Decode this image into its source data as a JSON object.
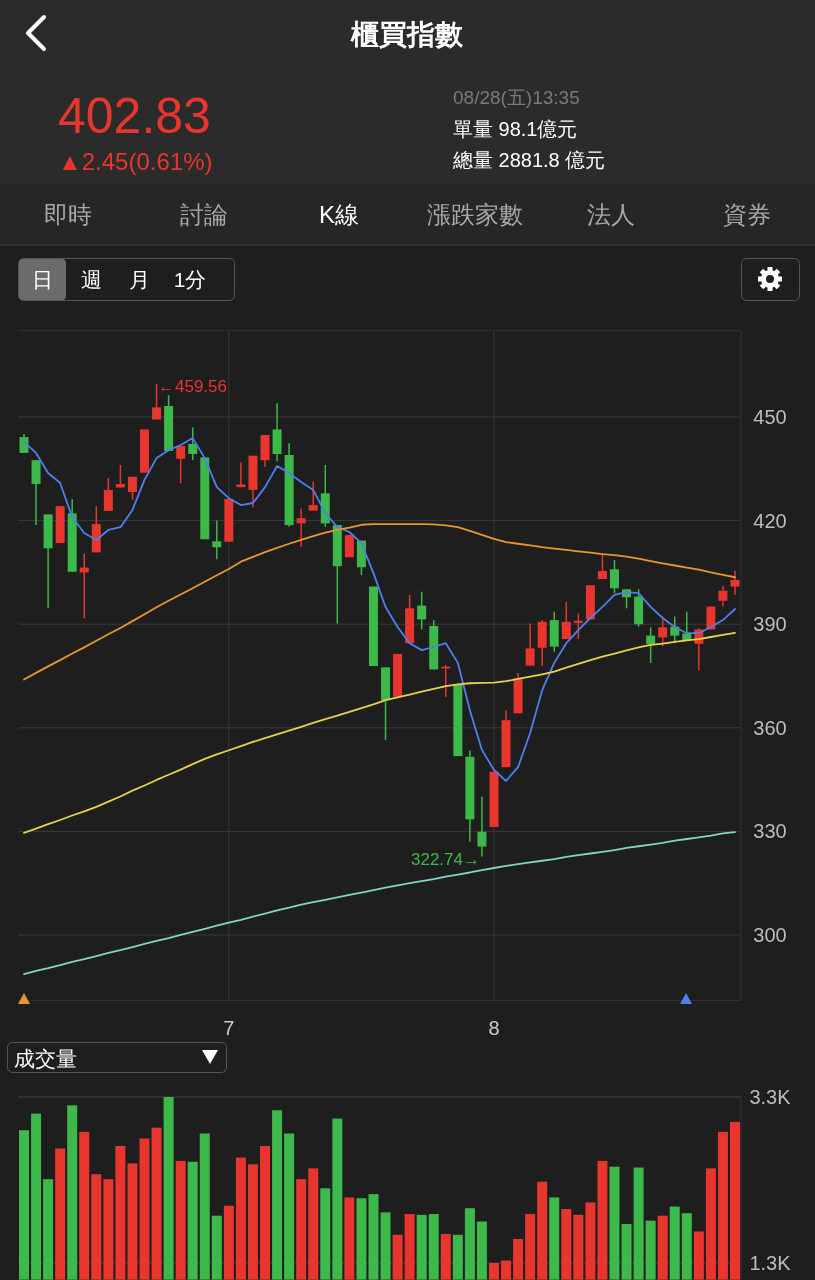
{
  "chart_data": [
    {
      "type": "candlestick",
      "title": "櫃買指數",
      "annotations": [
        "402.83",
        "▲2.45(0.61%)",
        "08/28(五)13:35",
        "單量 98.1億元",
        "總量 2881.8 億元",
        "即時",
        "討論",
        "K線",
        "漲跌家數",
        "法人",
        "資券",
        "日",
        "週",
        "月",
        "1分",
        "←459.56",
        "322.74→"
      ],
      "categories": [
        null,
        null,
        null,
        null,
        null,
        null,
        null,
        null,
        null,
        null,
        null,
        null,
        null,
        null,
        null,
        null,
        null,
        "7",
        null,
        null,
        null,
        null,
        null,
        null,
        null,
        null,
        null,
        null,
        null,
        null,
        null,
        null,
        null,
        null,
        null,
        null,
        null,
        null,
        null,
        "8",
        null,
        null,
        null,
        null,
        null,
        null,
        null,
        null,
        null,
        null,
        null,
        null,
        null,
        null,
        null,
        null,
        null,
        null,
        null,
        null
      ],
      "ohlc": [
        [
          444.2,
          445.1,
          439.6,
          439.6
        ],
        [
          437.5,
          437.5,
          418.7,
          430.6
        ],
        [
          421.8,
          421.8,
          394.7,
          412.0
        ],
        [
          413.5,
          424.2,
          413.5,
          424.2
        ],
        [
          422.1,
          426.2,
          405.2,
          405.2
        ],
        [
          405.0,
          410.5,
          391.7,
          406.4
        ],
        [
          410.8,
          424.2,
          410.8,
          419.0
        ],
        [
          422.8,
          432.4,
          422.8,
          428.9
        ],
        [
          429.6,
          436.1,
          429.6,
          430.6
        ],
        [
          428.3,
          432.7,
          426.0,
          432.7
        ],
        [
          433.9,
          446.4,
          433.9,
          446.4
        ],
        [
          449.3,
          459.56,
          449.3,
          452.8
        ],
        [
          453.2,
          456.4,
          440.2,
          440.2
        ],
        [
          437.9,
          441.6,
          430.8,
          441.6
        ],
        [
          442.2,
          447.0,
          437.5,
          439.3
        ],
        [
          438.3,
          438.3,
          414.6,
          414.6
        ],
        [
          414.0,
          420.0,
          408.8,
          412.3
        ],
        [
          413.9,
          426.3,
          413.9,
          426.3
        ],
        [
          429.7,
          436.8,
          429.7,
          430.5
        ],
        [
          428.9,
          438.8,
          423.9,
          438.8
        ],
        [
          437.5,
          444.8,
          435.5,
          444.8
        ],
        [
          446.4,
          454.0,
          437.1,
          439.3
        ],
        [
          439.0,
          442.4,
          418.2,
          418.7
        ],
        [
          419.2,
          423.5,
          412.4,
          420.7
        ],
        [
          422.9,
          431.3,
          422.9,
          424.5
        ],
        [
          427.9,
          436.1,
          418.2,
          419.2
        ],
        [
          418.7,
          418.7,
          390.2,
          406.8
        ],
        [
          409.4,
          415.8,
          409.4,
          415.8
        ],
        [
          414.2,
          414.2,
          404.2,
          406.5
        ],
        [
          400.9,
          400.9,
          377.9,
          377.9
        ],
        [
          377.5,
          377.5,
          356.5,
          368.0
        ],
        [
          369.0,
          381.4,
          369.0,
          381.4
        ],
        [
          384.5,
          398.5,
          384.5,
          394.6
        ],
        [
          395.4,
          399.4,
          388.5,
          391.4
        ],
        [
          389.5,
          391.2,
          376.9,
          376.9
        ],
        [
          377.2,
          378.2,
          369.0,
          377.7
        ],
        [
          372.7,
          372.7,
          351.8,
          351.8
        ],
        [
          351.6,
          353.4,
          327.0,
          333.5
        ],
        [
          329.9,
          340.0,
          322.74,
          325.6
        ],
        [
          331.3,
          347.3,
          331.3,
          347.3
        ],
        [
          348.6,
          365.1,
          348.6,
          362.2
        ],
        [
          364.2,
          375.8,
          364.2,
          374.3
        ],
        [
          378.0,
          390.2,
          378.0,
          383.0
        ],
        [
          383.2,
          391.2,
          377.9,
          390.7
        ],
        [
          391.2,
          393.6,
          382.0,
          383.5
        ],
        [
          385.7,
          396.5,
          385.7,
          390.7
        ],
        [
          390.4,
          393.1,
          385.7,
          391.0
        ],
        [
          391.4,
          401.3,
          391.4,
          401.3
        ],
        [
          403.1,
          410.5,
          403.1,
          405.4
        ],
        [
          405.9,
          408.6,
          399.0,
          400.4
        ],
        [
          400.1,
          400.1,
          394.6,
          397.8
        ],
        [
          398.0,
          400.1,
          389.3,
          390.0
        ],
        [
          386.7,
          389.1,
          378.8,
          384.3
        ],
        [
          386.2,
          392.2,
          383.7,
          389.1
        ],
        [
          389.3,
          392.2,
          384.5,
          386.7
        ],
        [
          387.3,
          393.6,
          385.4,
          385.4
        ],
        [
          384.3,
          388.8,
          376.7,
          388.5
        ],
        [
          388.5,
          395.1,
          388.5,
          395.1
        ],
        [
          396.8,
          401.1,
          395.1,
          399.7
        ],
        [
          400.9,
          405.5,
          398.5,
          402.83
        ]
      ],
      "colors": [
        "#3db84a",
        "#3db84a",
        "#3db84a",
        "#e8352e",
        "#3db84a",
        "#e8352e",
        "#e8352e",
        "#e8352e",
        "#e8352e",
        "#e8352e",
        "#e8352e",
        "#e8352e",
        "#3db84a",
        "#e8352e",
        "#3db84a",
        "#3db84a",
        "#3db84a",
        "#e8352e",
        "#e8352e",
        "#e8352e",
        "#e8352e",
        "#3db84a",
        "#3db84a",
        "#e8352e",
        "#e8352e",
        "#3db84a",
        "#3db84a",
        "#e8352e",
        "#3db84a",
        "#3db84a",
        "#3db84a",
        "#e8352e",
        "#e8352e",
        "#3db84a",
        "#3db84a",
        "#e8352e",
        "#3db84a",
        "#3db84a",
        "#3db84a",
        "#e8352e",
        "#e8352e",
        "#e8352e",
        "#e8352e",
        "#e8352e",
        "#3db84a",
        "#e8352e",
        "#e8352e",
        "#e8352e",
        "#e8352e",
        "#3db84a",
        "#3db84a",
        "#3db84a",
        "#3db84a",
        "#e8352e",
        "#3db84a",
        "#3db84a",
        "#e8352e",
        "#e8352e",
        "#e8352e",
        "#e8352e"
      ],
      "series": [
        {
          "type": "line",
          "color": "#4f7ff0",
          "values": [
            442.8,
            439.6,
            433.8,
            430.9,
            421.0,
            416.4,
            414.4,
            417.3,
            418.1,
            423.1,
            431.8,
            438.1,
            440.4,
            441.9,
            443.9,
            438.1,
            429.7,
            426.5,
            424.5,
            425.1,
            429.7,
            435.8,
            433.8,
            431.2,
            428.9,
            422.2,
            418.1,
            416.7,
            413.5,
            404.8,
            395.0,
            389.2,
            384.5,
            382.5,
            383.4,
            384.5,
            378.8,
            365.1,
            353.6,
            347.8,
            344.6,
            348.6,
            358.5,
            370.9,
            378.8,
            384.5,
            388.3,
            391.8,
            395.0,
            398.5,
            399.3,
            399.0,
            395.0,
            391.8,
            389.2,
            387.4,
            387.4,
            389.2,
            391.2,
            394.4
          ]
        },
        {
          "type": "line",
          "color": "#e8962e",
          "values": [
            374.0,
            375.9,
            377.8,
            379.6,
            381.5,
            383.3,
            385.2,
            387.1,
            388.9,
            390.9,
            392.9,
            394.9,
            396.8,
            398.6,
            400.4,
            402.3,
            404.2,
            406.0,
            408.1,
            409.5,
            410.9,
            412.1,
            413.3,
            414.4,
            415.5,
            416.5,
            417.3,
            418.0,
            418.8,
            419.0,
            419.0,
            419.0,
            419.0,
            419.0,
            418.9,
            418.6,
            418.1,
            417.0,
            415.9,
            414.7,
            413.8,
            413.3,
            412.8,
            412.3,
            411.9,
            411.5,
            411.1,
            410.7,
            410.3,
            410.0,
            409.6,
            409.0,
            408.3,
            407.6,
            407.0,
            406.4,
            405.8,
            405.0,
            404.3,
            403.6
          ]
        },
        {
          "type": "line",
          "color": "#e6d24a",
          "values": [
            329.6,
            330.8,
            332.1,
            333.3,
            334.6,
            335.8,
            337.1,
            338.6,
            340.1,
            341.8,
            343.3,
            344.9,
            346.4,
            347.9,
            349.5,
            351.0,
            352.3,
            353.5,
            354.7,
            355.9,
            357.0,
            358.1,
            359.2,
            360.3,
            361.4,
            362.5,
            363.5,
            364.6,
            365.7,
            366.8,
            368.0,
            368.8,
            369.6,
            370.5,
            371.3,
            372.1,
            372.6,
            372.9,
            373.0,
            373.1,
            373.5,
            374.2,
            374.8,
            375.5,
            376.3,
            377.4,
            378.5,
            379.6,
            380.6,
            381.5,
            382.4,
            383.3,
            384.0,
            384.4,
            384.9,
            385.3,
            385.7,
            386.3,
            386.9,
            387.5
          ]
        },
        {
          "type": "line",
          "color": "#7fd6c3",
          "values": [
            288.7,
            289.6,
            290.4,
            291.3,
            292.2,
            293.0,
            293.9,
            294.8,
            295.6,
            296.5,
            297.4,
            298.3,
            299.1,
            300.0,
            300.9,
            301.8,
            302.7,
            303.6,
            304.4,
            305.3,
            306.2,
            307.1,
            307.9,
            308.8,
            309.5,
            310.2,
            310.9,
            311.6,
            312.3,
            313.0,
            313.7,
            314.4,
            315.0,
            315.6,
            316.2,
            316.9,
            317.5,
            318.1,
            318.8,
            319.4,
            320.0,
            320.5,
            321.0,
            321.5,
            322.0,
            322.6,
            323.1,
            323.6,
            324.1,
            324.6,
            325.2,
            325.7,
            326.2,
            326.7,
            327.3,
            327.8,
            328.3,
            328.8,
            329.4,
            329.8
          ]
        }
      ],
      "ylim": [
        281,
        475
      ],
      "yticks": [
        300,
        330,
        360,
        390,
        420,
        450
      ],
      "grid": true
    },
    {
      "type": "bar",
      "title": "成交量",
      "categories": [
        null,
        null,
        null,
        null,
        null,
        null,
        null,
        null,
        null,
        null,
        null,
        null,
        null,
        null,
        null,
        null,
        null,
        null,
        null,
        null,
        null,
        null,
        null,
        null,
        null,
        null,
        null,
        null,
        null,
        null,
        null,
        null,
        null,
        null,
        null,
        null,
        null,
        null,
        null,
        null,
        null,
        null,
        null,
        null,
        null,
        null,
        null,
        null,
        null,
        null,
        null,
        null,
        null,
        null,
        null,
        null,
        null,
        null,
        null,
        null
      ],
      "values": [
        2900,
        3100,
        2310,
        2680,
        3200,
        2880,
        2370,
        2310,
        2710,
        2500,
        2800,
        2930,
        3300,
        2530,
        2520,
        2860,
        1870,
        1990,
        2570,
        2490,
        2710,
        3140,
        2860,
        2310,
        2440,
        2200,
        3040,
        2090,
        2080,
        2130,
        1910,
        1640,
        1890,
        1880,
        1890,
        1650,
        1640,
        1960,
        1800,
        1300,
        1330,
        1590,
        1890,
        2280,
        2090,
        1950,
        1880,
        2030,
        2530,
        2460,
        1770,
        2450,
        1810,
        1870,
        1980,
        1900,
        1680,
        2440,
        2880,
        3000
      ],
      "colors": [
        "#3db84a",
        "#3db84a",
        "#3db84a",
        "#e8352e",
        "#3db84a",
        "#e8352e",
        "#e8352e",
        "#e8352e",
        "#e8352e",
        "#e8352e",
        "#e8352e",
        "#e8352e",
        "#3db84a",
        "#e8352e",
        "#3db84a",
        "#3db84a",
        "#3db84a",
        "#e8352e",
        "#e8352e",
        "#e8352e",
        "#e8352e",
        "#3db84a",
        "#3db84a",
        "#e8352e",
        "#e8352e",
        "#3db84a",
        "#3db84a",
        "#e8352e",
        "#3db84a",
        "#3db84a",
        "#3db84a",
        "#e8352e",
        "#e8352e",
        "#3db84a",
        "#3db84a",
        "#e8352e",
        "#3db84a",
        "#3db84a",
        "#3db84a",
        "#e8352e",
        "#e8352e",
        "#e8352e",
        "#e8352e",
        "#e8352e",
        "#3db84a",
        "#e8352e",
        "#e8352e",
        "#e8352e",
        "#e8352e",
        "#3db84a",
        "#3db84a",
        "#3db84a",
        "#3db84a",
        "#e8352e",
        "#3db84a",
        "#3db84a",
        "#e8352e",
        "#e8352e",
        "#e8352e",
        "#e8352e"
      ],
      "ylim": [
        1100,
        3300
      ],
      "yticks": [
        {
          "value": 3300,
          "label": "3.3K"
        },
        {
          "value": 1300,
          "label": "1.3K"
        }
      ],
      "grid": "y"
    }
  ]
}
